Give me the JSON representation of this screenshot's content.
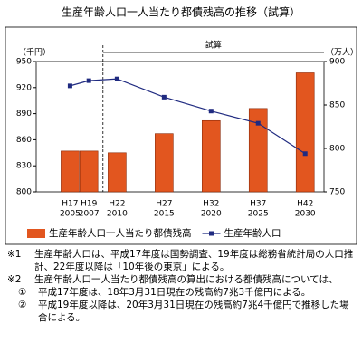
{
  "chart_data": {
    "type": "bar-line",
    "title": "生産年齢人口一人当たり都債残高の推移（試算）",
    "y_label": "（千円）",
    "y2_label": "（万人）",
    "annotation": "試算",
    "x": [
      2005,
      2007,
      2010,
      2015,
      2020,
      2025,
      2030
    ],
    "era_labels": [
      "H17",
      "H19",
      "H22",
      "H27",
      "H32",
      "H37",
      "H42"
    ],
    "xlim": [
      2001.4,
      2032
    ],
    "ylim": [
      800,
      950
    ],
    "yticks": [
      800,
      830,
      860,
      890,
      920,
      950
    ],
    "y2lim": [
      750,
      900
    ],
    "y2ticks": [
      750,
      800,
      850,
      900
    ],
    "series": [
      {
        "name": "生産年齢人口一人当たり都債残高",
        "type": "bar",
        "color": "#e2561f",
        "values": [
          847,
          847,
          845,
          867,
          882,
          896,
          937
        ]
      },
      {
        "name": "生産年齢人口",
        "type": "line",
        "color": "#1f2a80",
        "axis": "y2",
        "values": [
          872,
          878,
          880,
          859,
          843,
          829,
          794
        ]
      }
    ]
  },
  "notes": [
    {
      "marker": "※1",
      "text": "生産年齢人口は、平成17年度は国勢調査、19年度は総務省統計局の人口推計、22年度以降は「10年後の東京」による。",
      "sub": false
    },
    {
      "marker": "※2",
      "text": "生産年齢人口一人当たり都債残高の算出における都債残高については、",
      "sub": false
    },
    {
      "marker": "①",
      "text": "平成17年度は、18年3月31日現在の残高約7兆3千億円による。",
      "sub": true
    },
    {
      "marker": "②",
      "text": "平成19年度以降は、20年3月31日現在の残高約7兆4千億円で推移した場合による。",
      "sub": true
    }
  ]
}
